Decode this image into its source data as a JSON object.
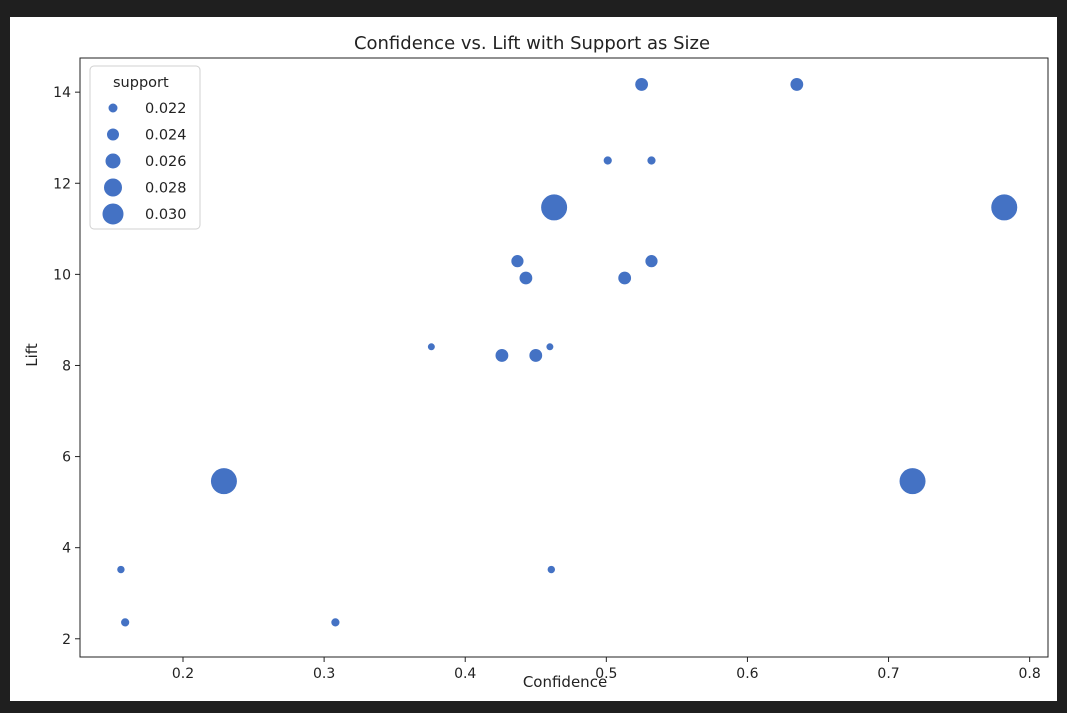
{
  "colors": {
    "point": "#4472c4",
    "point_edge": "#ffffff",
    "axis": "#222222",
    "background": "#ffffff"
  },
  "chart_data": {
    "type": "scatter",
    "title": "Confidence vs. Lift with Support as Size",
    "xlabel": "Confidence",
    "ylabel": "Lift",
    "xlim": [
      0.127,
      0.813
    ],
    "ylim": [
      1.6,
      14.75
    ],
    "xticks": [
      0.2,
      0.3,
      0.4,
      0.5,
      0.6,
      0.7,
      0.8
    ],
    "yticks": [
      2,
      4,
      6,
      8,
      10,
      12,
      14
    ],
    "xtick_labels": [
      "0.2",
      "0.3",
      "0.4",
      "0.5",
      "0.6",
      "0.7",
      "0.8"
    ],
    "ytick_labels": [
      "2",
      "4",
      "6",
      "8",
      "10",
      "12",
      "14"
    ],
    "grid": false,
    "legend": {
      "title": "support",
      "placement": "top-left",
      "entries": [
        {
          "label": "0.022",
          "value": 0.022
        },
        {
          "label": "0.024",
          "value": 0.024
        },
        {
          "label": "0.026",
          "value": 0.026
        },
        {
          "label": "0.028",
          "value": 0.028
        },
        {
          "label": "0.030",
          "value": 0.03
        }
      ]
    },
    "points": [
      {
        "x": 0.156,
        "y": 3.52,
        "size": 0.0208
      },
      {
        "x": 0.159,
        "y": 2.36,
        "size": 0.0212
      },
      {
        "x": 0.229,
        "y": 5.46,
        "size": 0.0301
      },
      {
        "x": 0.308,
        "y": 2.36,
        "size": 0.0212
      },
      {
        "x": 0.376,
        "y": 8.41,
        "size": 0.0206
      },
      {
        "x": 0.426,
        "y": 8.22,
        "size": 0.0235
      },
      {
        "x": 0.437,
        "y": 10.29,
        "size": 0.0232
      },
      {
        "x": 0.443,
        "y": 9.92,
        "size": 0.0235
      },
      {
        "x": 0.45,
        "y": 8.22,
        "size": 0.0235
      },
      {
        "x": 0.46,
        "y": 8.41,
        "size": 0.0206
      },
      {
        "x": 0.461,
        "y": 3.52,
        "size": 0.0208
      },
      {
        "x": 0.463,
        "y": 11.47,
        "size": 0.0301
      },
      {
        "x": 0.501,
        "y": 12.5,
        "size": 0.0212
      },
      {
        "x": 0.513,
        "y": 9.92,
        "size": 0.0235
      },
      {
        "x": 0.525,
        "y": 14.17,
        "size": 0.0235
      },
      {
        "x": 0.532,
        "y": 12.5,
        "size": 0.0212
      },
      {
        "x": 0.532,
        "y": 10.29,
        "size": 0.0232
      },
      {
        "x": 0.635,
        "y": 14.17,
        "size": 0.0235
      },
      {
        "x": 0.717,
        "y": 5.46,
        "size": 0.0301
      },
      {
        "x": 0.782,
        "y": 11.47,
        "size": 0.0301
      }
    ]
  }
}
